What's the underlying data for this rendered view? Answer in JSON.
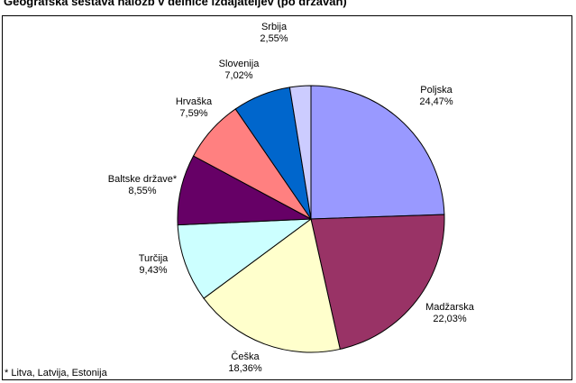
{
  "title": "Geografska sestava naložb v delnice izdajateljev (po državah)",
  "footnote": "* Litva, Latvija, Estonija",
  "chart_data": {
    "type": "pie",
    "title": "Geografska sestava naložb v delnice izdajateljev (po državah)",
    "start": "12 o'clock, clockwise",
    "slices": [
      {
        "label": "Poljska",
        "value": 24.47,
        "value_label": "24,47%",
        "color": "#9999ff"
      },
      {
        "label": "Madžarska",
        "value": 22.03,
        "value_label": "22,03%",
        "color": "#993366"
      },
      {
        "label": "Češka",
        "value": 18.36,
        "value_label": "18,36%",
        "color": "#ffffcc"
      },
      {
        "label": "Turčija",
        "value": 9.43,
        "value_label": "9,43%",
        "color": "#ccffff"
      },
      {
        "label": "Baltske države*",
        "value": 8.55,
        "value_label": "8,55%",
        "color": "#660066"
      },
      {
        "label": "Hrvaška",
        "value": 7.59,
        "value_label": "7,59%",
        "color": "#ff8080"
      },
      {
        "label": "Slovenija",
        "value": 7.02,
        "value_label": "7,02%",
        "color": "#0066cc"
      },
      {
        "label": "Srbija",
        "value": 2.55,
        "value_label": "2,55%",
        "color": "#ccccff"
      }
    ],
    "legend": "none"
  }
}
